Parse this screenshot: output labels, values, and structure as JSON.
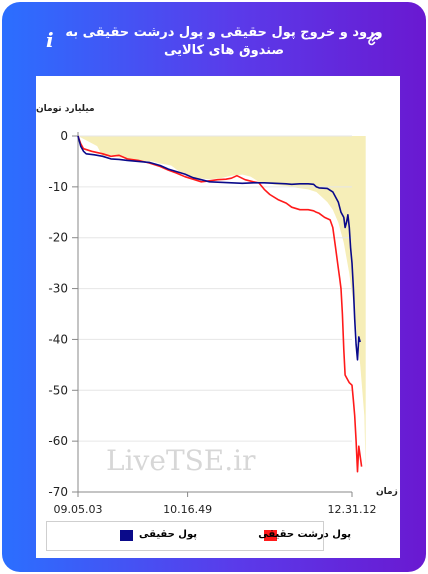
{
  "header": {
    "title": "ورود و خروج پول حقیقی و پول درشت حقیقی به صندوق های کالایی",
    "info_label": "i",
    "icon": "link-icon"
  },
  "watermark": "LiveTSE.ir",
  "colors": {
    "real_money": "#0a0a8a",
    "big_real_money": "#ff1a1a",
    "area": "#f6eeb8"
  },
  "chart_data": {
    "type": "line",
    "ylabel": "میلیارد تومان",
    "xlabel": "زمان",
    "ylim": [
      -70,
      0
    ],
    "y_ticks": [
      0,
      -10,
      -20,
      -30,
      -40,
      -50,
      -60,
      -70
    ],
    "x_tick_labels": [
      "09.05.03",
      "10.16.49",
      "12.31.12"
    ],
    "x_range": [
      0,
      100
    ],
    "x_tick_positions": [
      0,
      40,
      100
    ],
    "grid": true,
    "legend_placement": "bottom",
    "series": [
      {
        "name": "پول حقیقی",
        "values": [
          [
            0,
            0
          ],
          [
            1,
            -2
          ],
          [
            2,
            -3
          ],
          [
            3,
            -3.5
          ],
          [
            6,
            -3.7
          ],
          [
            9,
            -4
          ],
          [
            12,
            -4.5
          ],
          [
            15,
            -4.6
          ],
          [
            18,
            -4.8
          ],
          [
            22,
            -5
          ],
          [
            26,
            -5.2
          ],
          [
            30,
            -5.8
          ],
          [
            33,
            -6.5
          ],
          [
            36,
            -7
          ],
          [
            39,
            -7.5
          ],
          [
            42,
            -8.2
          ],
          [
            45,
            -8.6
          ],
          [
            48,
            -9
          ],
          [
            52,
            -9.1
          ],
          [
            56,
            -9.2
          ],
          [
            60,
            -9.3
          ],
          [
            64,
            -9.2
          ],
          [
            68,
            -9.2
          ],
          [
            72,
            -9.3
          ],
          [
            76,
            -9.4
          ],
          [
            78,
            -9.5
          ],
          [
            81,
            -9.4
          ],
          [
            84,
            -9.4
          ],
          [
            86,
            -9.5
          ],
          [
            87,
            -10
          ],
          [
            88,
            -10.2
          ],
          [
            91,
            -10.3
          ],
          [
            93,
            -11
          ],
          [
            95,
            -13
          ],
          [
            96,
            -15
          ],
          [
            97,
            -16
          ],
          [
            97.5,
            -18
          ],
          [
            98,
            -17
          ],
          [
            98.5,
            -15.5
          ],
          [
            99,
            -18
          ],
          [
            99.5,
            -22
          ],
          [
            100,
            -25
          ],
          [
            100.5,
            -30
          ],
          [
            101,
            -36
          ],
          [
            101.5,
            -41
          ],
          [
            102,
            -44
          ],
          [
            102.5,
            -39.5
          ],
          [
            103,
            -40.5
          ]
        ]
      },
      {
        "name": "پول درشت حقیقی",
        "values": [
          [
            0,
            0
          ],
          [
            1,
            -1.5
          ],
          [
            2,
            -2.5
          ],
          [
            5,
            -3
          ],
          [
            9,
            -3.5
          ],
          [
            12,
            -4
          ],
          [
            15,
            -3.8
          ],
          [
            18,
            -4.5
          ],
          [
            22,
            -4.8
          ],
          [
            26,
            -5.3
          ],
          [
            30,
            -6
          ],
          [
            33,
            -6.7
          ],
          [
            36,
            -7.3
          ],
          [
            39,
            -8
          ],
          [
            42,
            -8.5
          ],
          [
            45,
            -9
          ],
          [
            48,
            -8.8
          ],
          [
            51,
            -8.6
          ],
          [
            54,
            -8.5
          ],
          [
            56,
            -8.3
          ],
          [
            58,
            -7.8
          ],
          [
            61,
            -8.6
          ],
          [
            64,
            -9
          ],
          [
            66,
            -9.2
          ],
          [
            68,
            -10.5
          ],
          [
            70,
            -11.5
          ],
          [
            73,
            -12.5
          ],
          [
            76,
            -13.2
          ],
          [
            78,
            -14
          ],
          [
            81,
            -14.5
          ],
          [
            84,
            -14.5
          ],
          [
            86,
            -14.7
          ],
          [
            87,
            -15
          ],
          [
            88,
            -15.2
          ],
          [
            90,
            -16
          ],
          [
            92,
            -16.5
          ],
          [
            93,
            -18
          ],
          [
            94,
            -22
          ],
          [
            95,
            -26
          ],
          [
            95.5,
            -28
          ],
          [
            96,
            -30
          ],
          [
            96.5,
            -35
          ],
          [
            97,
            -42
          ],
          [
            97.5,
            -47
          ],
          [
            98,
            -47.5
          ],
          [
            99,
            -48.5
          ],
          [
            100,
            -49
          ],
          [
            100.5,
            -52
          ],
          [
            101,
            -55
          ],
          [
            101.5,
            -60
          ],
          [
            102,
            -66
          ],
          [
            102.5,
            -61
          ],
          [
            103,
            -63
          ],
          [
            103.5,
            -65
          ]
        ]
      }
    ],
    "envelope": [
      [
        0,
        0
      ],
      [
        7,
        -2
      ],
      [
        9,
        -4
      ],
      [
        12,
        -3.7
      ],
      [
        15,
        -4.2
      ],
      [
        19,
        -4.5
      ],
      [
        23,
        -4.9
      ],
      [
        27,
        -5
      ],
      [
        30,
        -5.4
      ],
      [
        34,
        -5.8
      ],
      [
        37,
        -7
      ],
      [
        40,
        -7.8
      ],
      [
        44,
        -8.3
      ],
      [
        48,
        -8.5
      ],
      [
        52,
        -8.3
      ],
      [
        56,
        -7.8
      ],
      [
        60,
        -7.6
      ],
      [
        63,
        -8
      ],
      [
        66,
        -9
      ],
      [
        69,
        -9.3
      ],
      [
        72,
        -9.6
      ],
      [
        76,
        -9.8
      ],
      [
        80,
        -10.2
      ],
      [
        84,
        -10.5
      ],
      [
        87,
        -11
      ],
      [
        89,
        -12
      ],
      [
        91,
        -13
      ],
      [
        93,
        -14.5
      ],
      [
        95,
        -17
      ],
      [
        97,
        -21
      ],
      [
        99,
        -27
      ],
      [
        101,
        -35
      ],
      [
        103,
        -45
      ],
      [
        104.5,
        -55
      ],
      [
        105,
        -66
      ]
    ]
  }
}
